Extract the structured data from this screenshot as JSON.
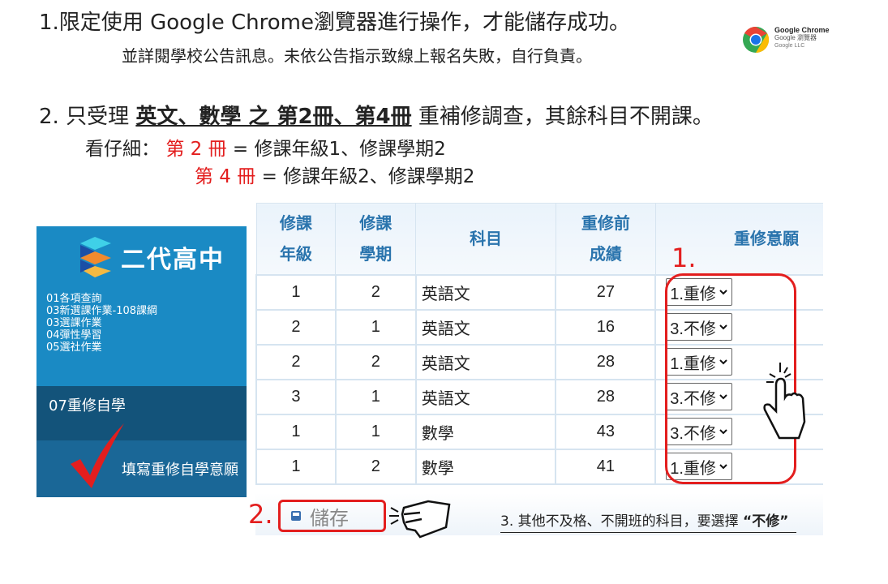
{
  "notice1": {
    "text": "1.限定使用 Google Chrome瀏覽器進行操作，才能儲存成功。",
    "sub": "並詳閱學校公告訊息。未依公告指示致線上報名失敗，自行負責。"
  },
  "chrome_badge": {
    "name": "Google Chrome",
    "subtitle": "Google 瀏覽器",
    "publisher": "Google LLC"
  },
  "notice2": {
    "prefix": "2. 只受理 ",
    "emphasis": "英文、數學  之  第2冊、第4冊",
    "suffix": " 重補修調查，其餘科目不開課。"
  },
  "hint": {
    "label": "看仔細：",
    "vol2": "第 2 冊",
    "vol2_desc": " = 修課年級1、修課學期2",
    "vol4": "第 4 冊",
    "vol4_desc": " = 修課年級2、修課學期2"
  },
  "sidebar": {
    "logo": "二代高中",
    "items": [
      "01各項查詢",
      "03新選課作業-108課綱",
      "03選課作業",
      "04彈性學習",
      "05選社作業"
    ],
    "active_section": "07重修自學",
    "active_item": "填寫重修自學意願"
  },
  "table": {
    "headers": [
      "修課\n年級",
      "修課\n學期",
      "科目",
      "重修前\n成績",
      "重修意願"
    ],
    "rows": [
      {
        "grade": "1",
        "term": "2",
        "subject": "英語文",
        "score": "27",
        "choice": "1.重修"
      },
      {
        "grade": "2",
        "term": "1",
        "subject": "英語文",
        "score": "16",
        "choice": "3.不修"
      },
      {
        "grade": "2",
        "term": "2",
        "subject": "英語文",
        "score": "28",
        "choice": "1.重修"
      },
      {
        "grade": "3",
        "term": "1",
        "subject": "英語文",
        "score": "28",
        "choice": "3.不修"
      },
      {
        "grade": "1",
        "term": "1",
        "subject": "數學",
        "score": "43",
        "choice": "3.不修"
      },
      {
        "grade": "1",
        "term": "2",
        "subject": "數學",
        "score": "41",
        "choice": "1.重修"
      }
    ]
  },
  "save_label": "儲存",
  "annotations": {
    "step1": "1.",
    "step2": "2.",
    "note_prefix": "3. 其他不及格、不開班的科目，要選擇 ",
    "note_emph": "“不修”"
  },
  "colors": {
    "accent_red": "#e31e1e",
    "sidebar_blue": "#1a8ac4",
    "sidebar_dark": "#13537a",
    "header_text": "#2a74ad"
  }
}
